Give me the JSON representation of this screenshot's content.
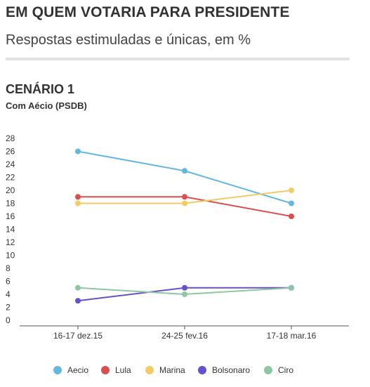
{
  "header": {
    "title": "EM QUEM VOTARIA PARA PRESIDENTE",
    "subtitle": "Respostas estimuladas e únicas, em %"
  },
  "section": {
    "title": "CENÁRIO 1",
    "subtitle": "Com Aécio (PSDB)"
  },
  "chart_data": {
    "type": "line",
    "categories": [
      "16-17 dez.15",
      "24-25 fev.16",
      "17-18 mar.16"
    ],
    "y_ticks": [
      "0",
      "2",
      "4",
      "6",
      "8",
      "10",
      "12",
      "14",
      "16",
      "18",
      "20",
      "22",
      "24",
      "26",
      "28"
    ],
    "ylim": [
      0,
      28
    ],
    "grid": false,
    "legend_position": "bottom",
    "series": [
      {
        "name": "Aecio",
        "color": "#63b7e0",
        "values": [
          26,
          23,
          18
        ]
      },
      {
        "name": "Lula",
        "color": "#d94f4f",
        "values": [
          19,
          19,
          16
        ]
      },
      {
        "name": "Marina",
        "color": "#f2cb64",
        "values": [
          18,
          18,
          20
        ]
      },
      {
        "name": "Bolsonaro",
        "color": "#6a4fcc",
        "values": [
          3,
          5,
          5
        ]
      },
      {
        "name": "Ciro",
        "color": "#8dc7a4",
        "values": [
          5,
          4,
          5
        ]
      }
    ]
  }
}
